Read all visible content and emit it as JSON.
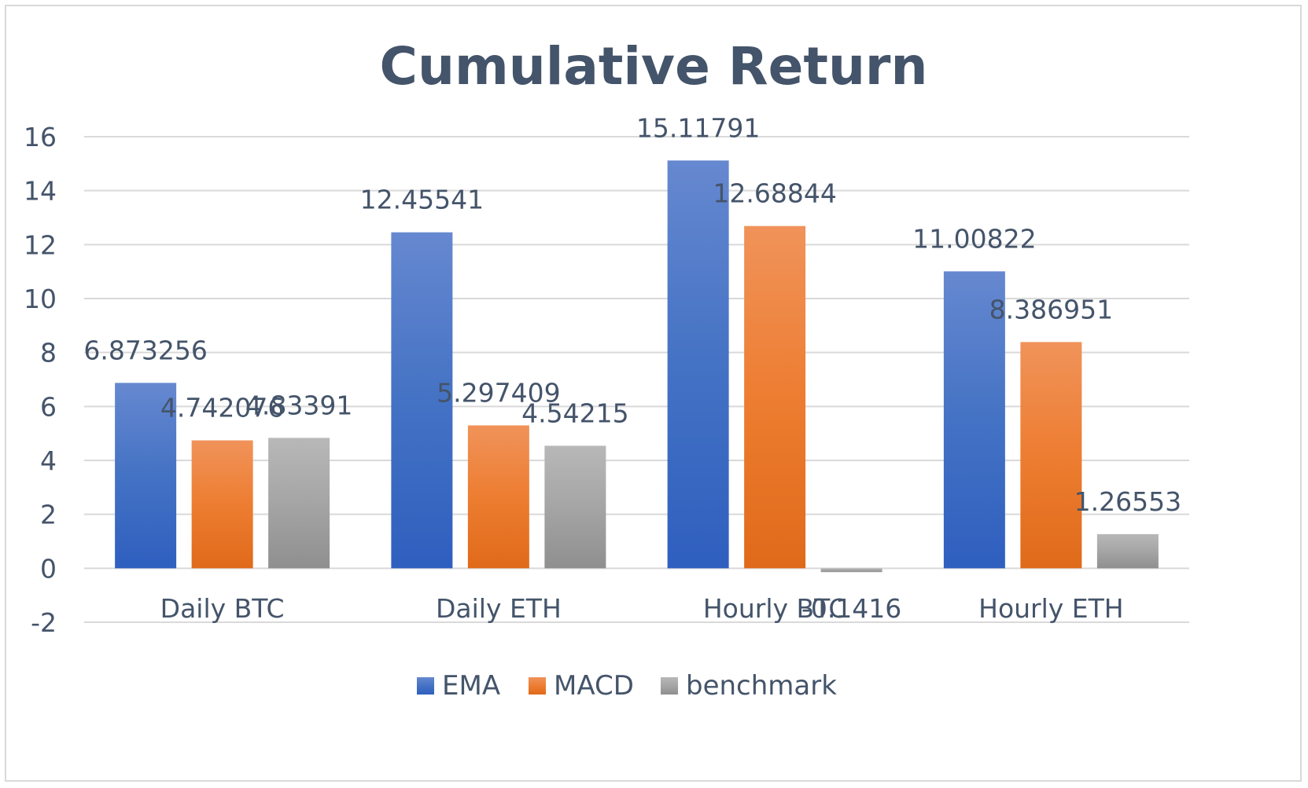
{
  "chart_data": {
    "type": "bar",
    "title": "Cumulative Return",
    "xlabel": "",
    "ylabel": "",
    "categories": [
      "Daily BTC",
      "Daily ETH",
      "Hourly BTC",
      "Hourly ETH"
    ],
    "series": [
      {
        "name": "EMA",
        "values": [
          6.873256,
          12.45541,
          15.11791,
          11.00822
        ],
        "labels": [
          "6.873256",
          "12.45541",
          "15.11791",
          "11.00822"
        ],
        "color": "#4472c4",
        "color_light": "#6688d0",
        "color_dark": "#2f5fbf"
      },
      {
        "name": "MACD",
        "values": [
          4.742076,
          5.297409,
          12.68844,
          8.386951
        ],
        "labels": [
          "4.742076",
          "5.297409",
          "12.68844",
          "8.386951"
        ],
        "color": "#ed7d31",
        "color_light": "#f0935a",
        "color_dark": "#e06a1a"
      },
      {
        "name": "benchmark",
        "values": [
          4.83391,
          4.54215,
          -0.1416,
          1.26553
        ],
        "labels": [
          "4.83391",
          "4.54215",
          "-0.1416",
          "1.26553"
        ],
        "color": "#a5a5a5",
        "color_light": "#b8b8b8",
        "color_dark": "#8f8f8f"
      }
    ],
    "ylim": [
      -2,
      16
    ],
    "yticks": [
      -2,
      0,
      2,
      4,
      6,
      8,
      10,
      12,
      14,
      16
    ],
    "grid": true,
    "legend_position": "bottom"
  }
}
